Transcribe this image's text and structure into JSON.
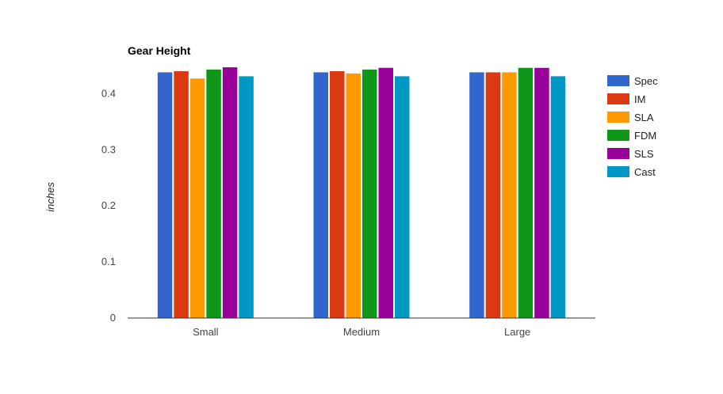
{
  "chart_data": {
    "type": "bar",
    "title": "Gear Height",
    "xlabel": "",
    "ylabel": "inches",
    "categories": [
      "Small",
      "Medium",
      "Large"
    ],
    "ylim": [
      0,
      0.44
    ],
    "yticks": [
      0,
      0.1,
      0.2,
      0.3,
      0.4
    ],
    "ytick_labels": [
      "0",
      "0.1",
      "0.2",
      "0.3",
      "0.4"
    ],
    "grid": false,
    "legend_position": "right",
    "series": [
      {
        "name": "Spec",
        "color": "#3366cc",
        "values": [
          0.438,
          0.438,
          0.438
        ]
      },
      {
        "name": "IM",
        "color": "#dc3912",
        "values": [
          0.44,
          0.44,
          0.438
        ]
      },
      {
        "name": "SLA",
        "color": "#ff9900",
        "values": [
          0.427,
          0.436,
          0.438
        ]
      },
      {
        "name": "FDM",
        "color": "#109618",
        "values": [
          0.443,
          0.443,
          0.446
        ]
      },
      {
        "name": "SLS",
        "color": "#990099",
        "values": [
          0.447,
          0.446,
          0.446
        ]
      },
      {
        "name": "Cast",
        "color": "#0099c6",
        "values": [
          0.431,
          0.431,
          0.431
        ]
      }
    ]
  }
}
